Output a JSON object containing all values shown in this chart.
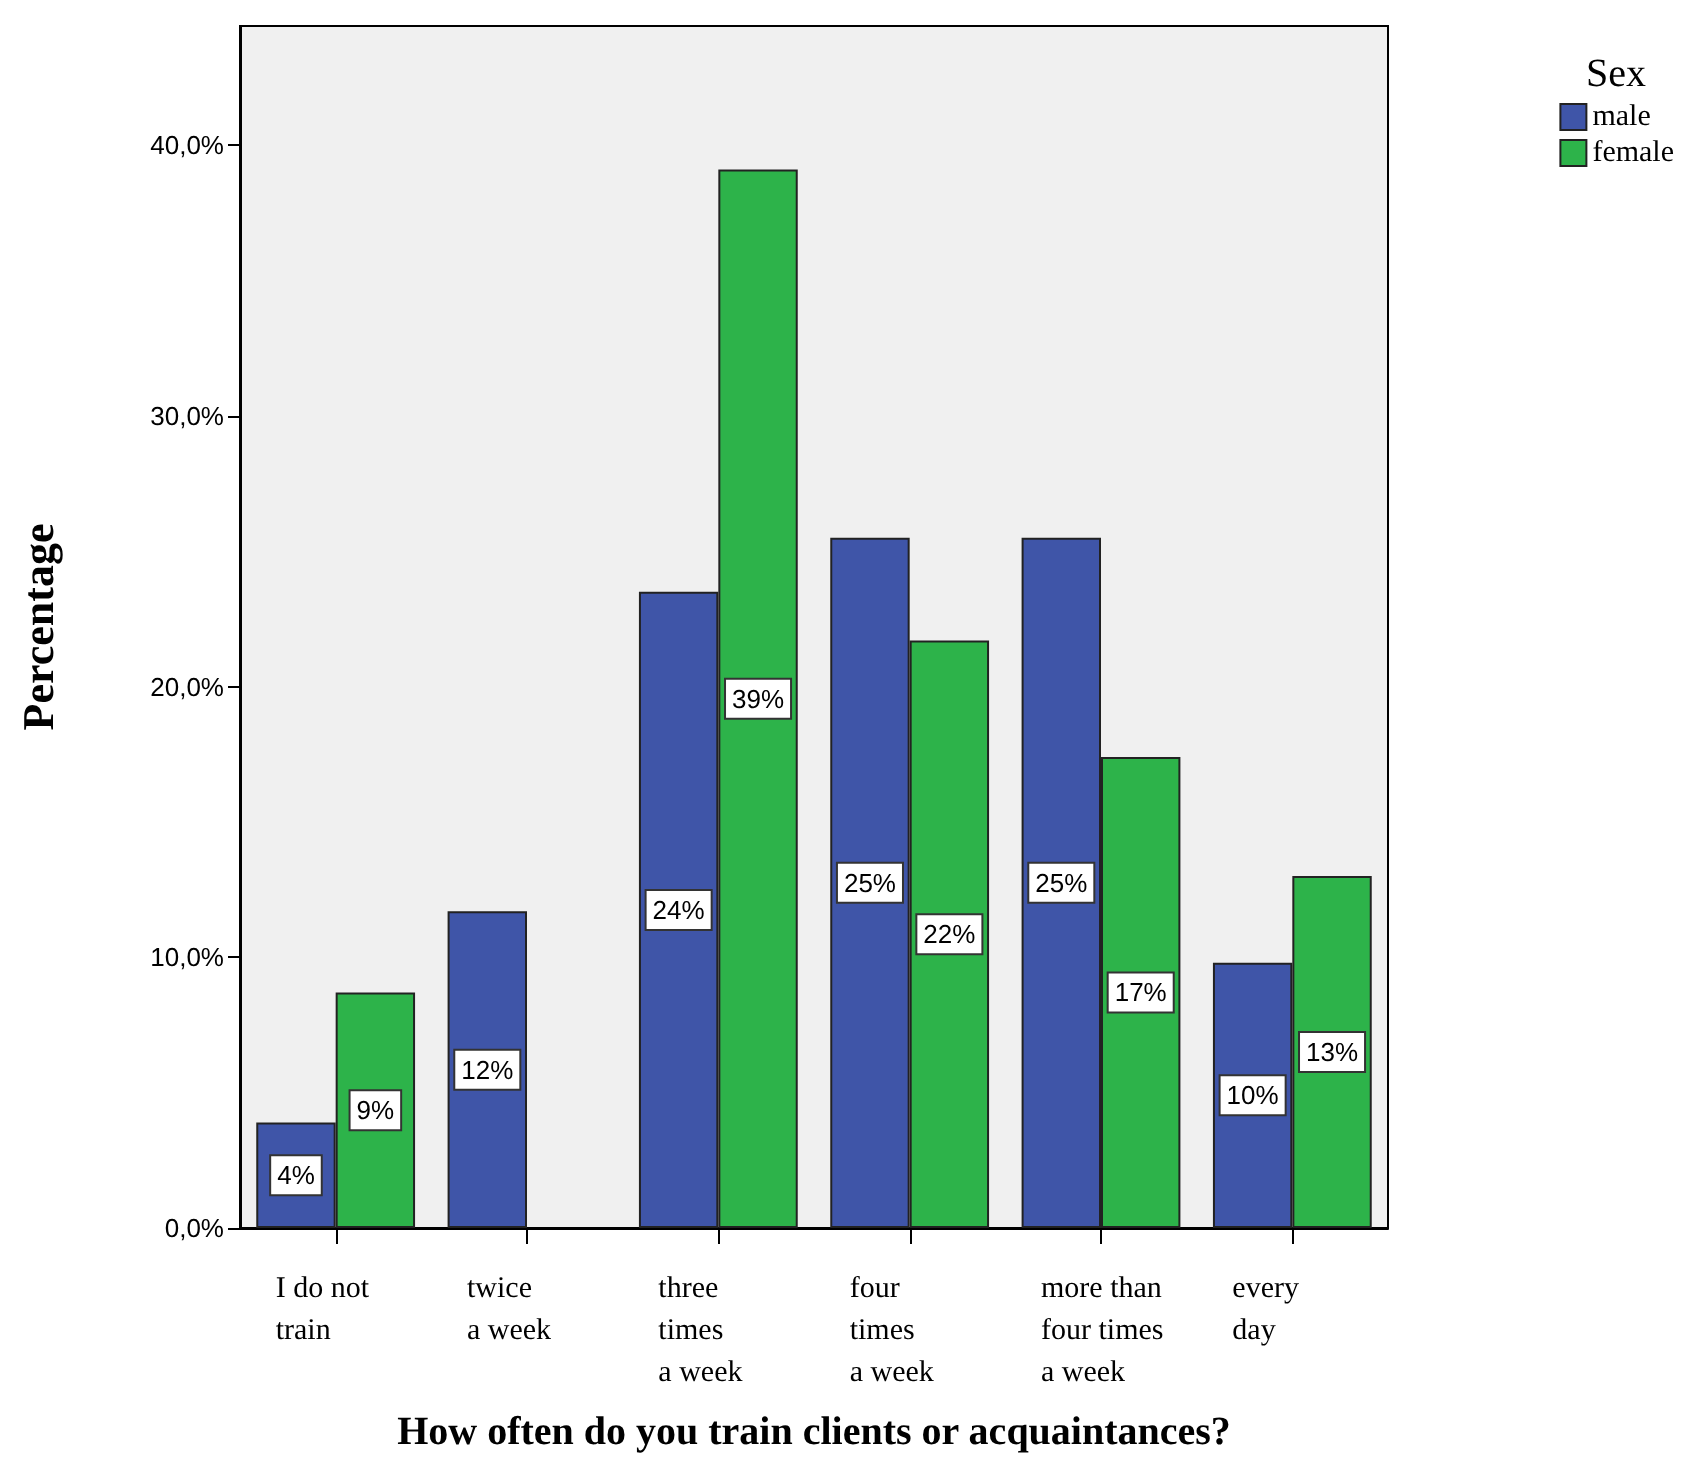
{
  "chart_data": {
    "type": "bar",
    "xlabel": "How often do you train clients or acquaintances?",
    "ylabel": "Percentage",
    "legend_title": "Sex",
    "legend": "top right",
    "categories": [
      "I do not\ntrain",
      "twice\na week",
      "three\ntimes\na week",
      "four\ntimes\na week",
      "more than\nfour times\na week",
      "every\nday"
    ],
    "series": [
      {
        "name": "male",
        "color": "#3f55a8",
        "values": [
          3.9,
          11.7,
          23.5,
          25.5,
          25.5,
          9.8
        ],
        "value_labels": [
          "4%",
          "12%",
          "24%",
          "25%",
          "25%",
          "10%"
        ]
      },
      {
        "name": "female",
        "color": "#2db34a",
        "values": [
          8.7,
          null,
          39.1,
          21.7,
          17.4,
          13.0
        ],
        "value_labels": [
          "9%",
          null,
          "39%",
          "22%",
          "17%",
          "13%"
        ]
      }
    ],
    "ylim": [
      0,
      44.4
    ],
    "yticks": [
      {
        "value": 0,
        "label": "0,0%"
      },
      {
        "value": 10,
        "label": "10,0%"
      },
      {
        "value": 20,
        "label": "20,0%"
      },
      {
        "value": 30,
        "label": "30,0%"
      },
      {
        "value": 40,
        "label": "40,0%"
      }
    ],
    "grid": false
  }
}
